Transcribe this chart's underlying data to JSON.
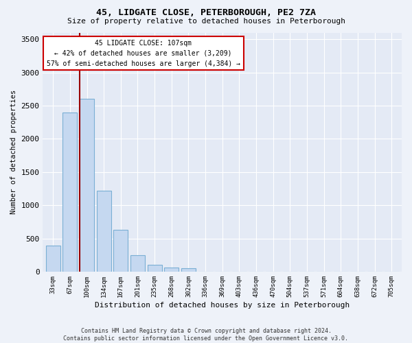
{
  "title": "45, LIDGATE CLOSE, PETERBOROUGH, PE2 7ZA",
  "subtitle": "Size of property relative to detached houses in Peterborough",
  "xlabel": "Distribution of detached houses by size in Peterborough",
  "ylabel": "Number of detached properties",
  "footer_line1": "Contains HM Land Registry data © Crown copyright and database right 2024.",
  "footer_line2": "Contains public sector information licensed under the Open Government Licence v3.0.",
  "categories": [
    "33sqm",
    "67sqm",
    "100sqm",
    "134sqm",
    "167sqm",
    "201sqm",
    "235sqm",
    "268sqm",
    "302sqm",
    "336sqm",
    "369sqm",
    "403sqm",
    "436sqm",
    "470sqm",
    "504sqm",
    "537sqm",
    "571sqm",
    "604sqm",
    "638sqm",
    "672sqm",
    "705sqm"
  ],
  "values": [
    390,
    2400,
    2600,
    1220,
    630,
    250,
    100,
    60,
    50,
    0,
    0,
    0,
    0,
    0,
    0,
    0,
    0,
    0,
    0,
    0,
    0
  ],
  "bar_color": "#c5d8f0",
  "bar_edge_color": "#7aafd4",
  "vline_x_index": 2,
  "vline_color": "#990000",
  "annotation_box_edgecolor": "#cc0000",
  "property_label": "45 LIDGATE CLOSE: 107sqm",
  "annotation_line1": "← 42% of detached houses are smaller (3,209)",
  "annotation_line2": "57% of semi-detached houses are larger (4,384) →",
  "background_color": "#eef2f9",
  "plot_bg_color": "#e4eaf5",
  "grid_color": "#ffffff",
  "ylim": [
    0,
    3600
  ],
  "yticks": [
    0,
    500,
    1000,
    1500,
    2000,
    2500,
    3000,
    3500
  ]
}
